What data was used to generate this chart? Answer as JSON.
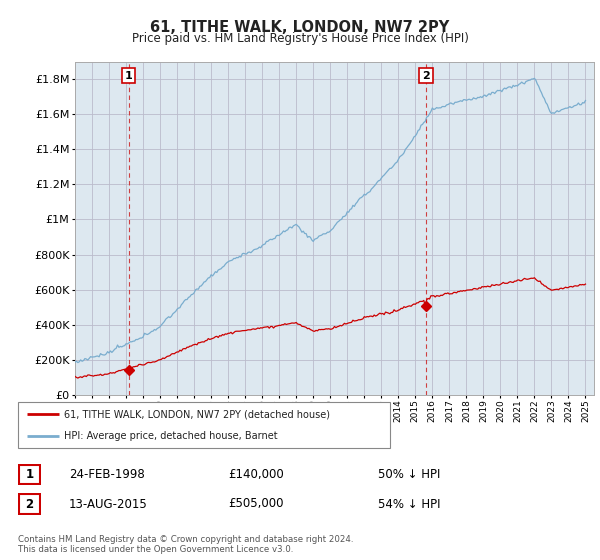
{
  "title": "61, TITHE WALK, LONDON, NW7 2PY",
  "subtitle": "Price paid vs. HM Land Registry's House Price Index (HPI)",
  "hpi_label": "HPI: Average price, detached house, Barnet",
  "property_label": "61, TITHE WALK, LONDON, NW7 2PY (detached house)",
  "sale1_date": "24-FEB-1998",
  "sale1_price": "£140,000",
  "sale1_hpi": "50% ↓ HPI",
  "sale2_date": "13-AUG-2015",
  "sale2_price": "£505,000",
  "sale2_hpi": "54% ↓ HPI",
  "footer": "Contains HM Land Registry data © Crown copyright and database right 2024.\nThis data is licensed under the Open Government Licence v3.0.",
  "ylim": [
    0,
    1900000
  ],
  "yticks": [
    0,
    200000,
    400000,
    600000,
    800000,
    1000000,
    1200000,
    1400000,
    1600000,
    1800000
  ],
  "hpi_color": "#7aadce",
  "property_color": "#cc0000",
  "sale1_year": 1998.15,
  "sale2_year": 2015.62,
  "sale1_price_val": 140000,
  "sale2_price_val": 505000,
  "vline_color": "#cc2222",
  "grid_color": "#bbbbcc",
  "chart_bg": "#dde8f0",
  "bg_color": "#ffffff"
}
